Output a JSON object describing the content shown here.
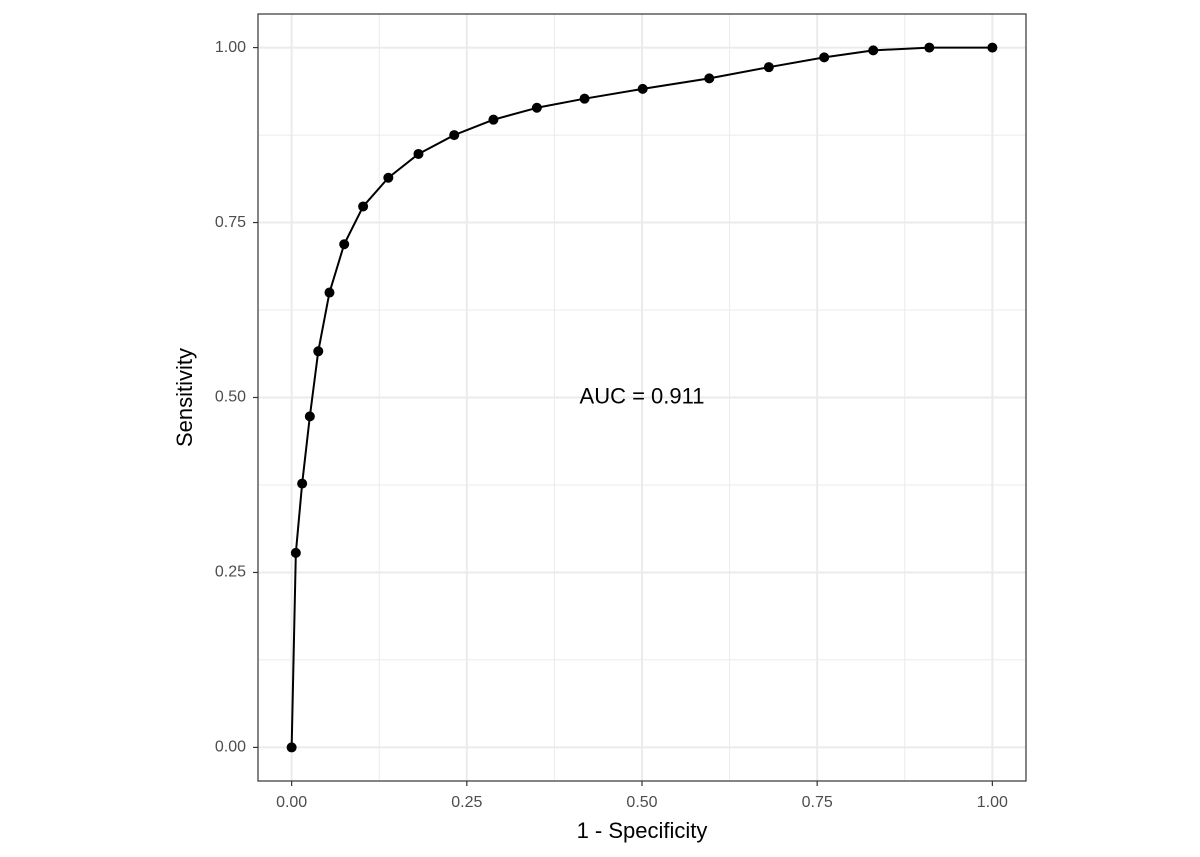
{
  "chart_data": {
    "type": "line",
    "title": "",
    "xlabel": "1 - Specificity",
    "ylabel": "Sensitivity",
    "xlim": [
      -0.048,
      1.048
    ],
    "ylim": [
      -0.048,
      1.048
    ],
    "x_ticks": [
      0.0,
      0.25,
      0.5,
      0.75,
      1.0
    ],
    "x_tick_labels": [
      "0.00",
      "0.25",
      "0.50",
      "0.75",
      "1.00"
    ],
    "y_ticks": [
      0.0,
      0.25,
      0.5,
      0.75,
      1.0
    ],
    "y_tick_labels": [
      "0.00",
      "0.25",
      "0.50",
      "0.75",
      "1.00"
    ],
    "grid": true,
    "annotation": {
      "text": "AUC =  0.911",
      "x": 0.5,
      "y": 0.5
    },
    "series": [
      {
        "x": [
          0.0,
          0.006,
          0.015,
          0.026,
          0.038,
          0.054,
          0.075,
          0.102,
          0.138,
          0.181,
          0.232,
          0.288,
          0.35,
          0.418,
          0.501,
          0.596,
          0.681,
          0.76,
          0.83,
          0.91,
          1.0
        ],
        "y": [
          0.0,
          0.278,
          0.377,
          0.473,
          0.566,
          0.65,
          0.719,
          0.773,
          0.814,
          0.848,
          0.875,
          0.897,
          0.914,
          0.927,
          0.941,
          0.956,
          0.972,
          0.986,
          0.996,
          1.0,
          1.0
        ]
      }
    ],
    "colors": {
      "line": "#000000",
      "points": "#000000",
      "grid": "#ebebeb",
      "panel_border": "#333333"
    }
  }
}
